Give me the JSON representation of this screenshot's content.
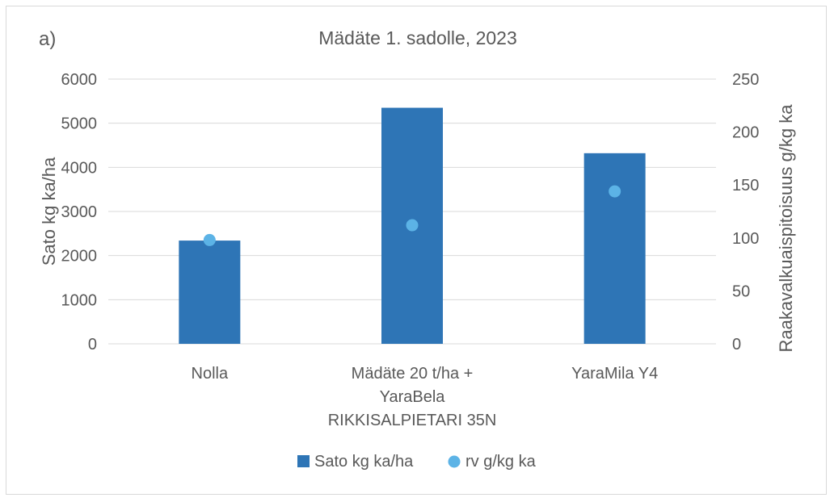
{
  "panel_label": "a)",
  "chart_data": {
    "type": "bar",
    "title": "Mädäte 1. sadolle, 2023",
    "categories": [
      [
        "Nolla"
      ],
      [
        "Mädäte 20 t/ha +",
        "YaraBela",
        "RIKKISALPIETARI 35N"
      ],
      [
        "YaraMila Y4"
      ]
    ],
    "ylabel": "Sato kg ka/ha",
    "y2label": "Raakavalkuaispitoisuus g/kg ka",
    "ylim": [
      0,
      6000
    ],
    "y2lim": [
      0,
      250
    ],
    "yticks": [
      "0",
      "1000",
      "2000",
      "3000",
      "4000",
      "5000",
      "6000"
    ],
    "y2ticks": [
      "0",
      "50",
      "100",
      "150",
      "200",
      "250"
    ],
    "grid": true,
    "legend_position": "bottom",
    "series": [
      {
        "name": "Sato kg ka/ha",
        "type": "bar",
        "axis": "left",
        "color": "#2e75b6",
        "values": [
          2340,
          5350,
          4320
        ]
      },
      {
        "name": "rv g/kg ka",
        "type": "scatter",
        "axis": "right",
        "color": "#5cb3e6",
        "values": [
          98,
          112,
          144
        ]
      }
    ]
  }
}
